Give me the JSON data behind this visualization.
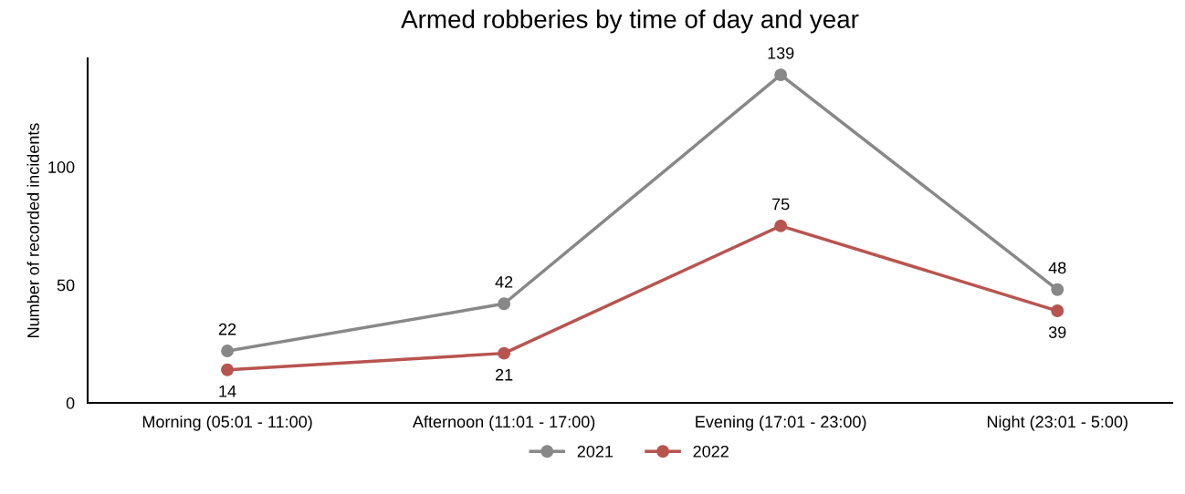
{
  "chart_data": {
    "type": "line",
    "title": "Armed robberies by time of day and year",
    "ylabel": "Number of recorded incidents",
    "categories": [
      "Morning (05:01 - 11:00)",
      "Afternoon (11:01 - 17:00)",
      "Evening (17:01 - 23:00)",
      "Night (23:01 - 5:00)"
    ],
    "series": [
      {
        "name": "2021",
        "color": "#888888",
        "values": [
          22,
          42,
          139,
          48
        ]
      },
      {
        "name": "2022",
        "color": "#b85450",
        "values": [
          14,
          21,
          75,
          39
        ]
      }
    ],
    "ylim": [
      0,
      146
    ],
    "yticks": [
      0,
      50,
      100
    ],
    "data_labels": true,
    "legend": "bottom",
    "marker": "circle",
    "line_style": "solid",
    "grid": false
  }
}
